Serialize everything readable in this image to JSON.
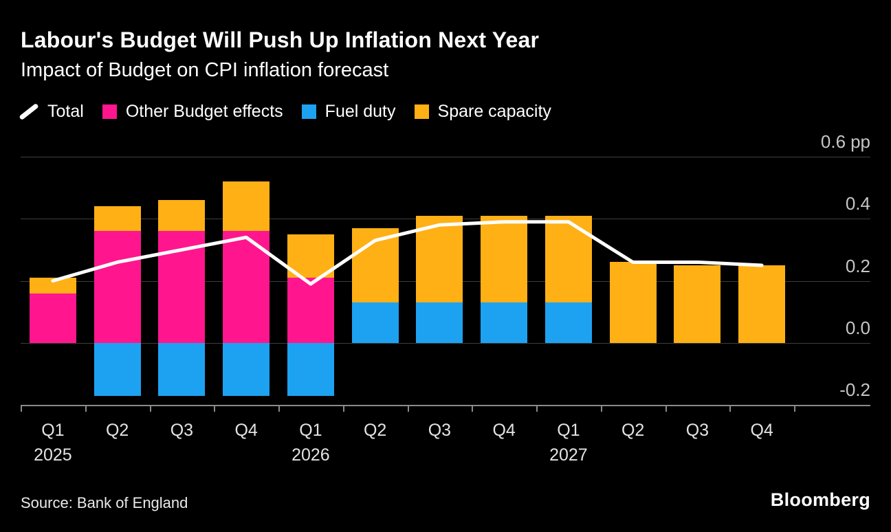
{
  "header": {
    "title": "Labour's Budget Will Push Up Inflation Next Year",
    "subtitle": "Impact of Budget on CPI inflation forecast"
  },
  "legend": {
    "items": [
      {
        "label": "Total",
        "swatch": "line",
        "color": "#ffffff"
      },
      {
        "label": "Other Budget effects",
        "swatch": "square",
        "color": "#ff168f"
      },
      {
        "label": "Fuel duty",
        "swatch": "square",
        "color": "#1da2f1"
      },
      {
        "label": "Spare capacity",
        "swatch": "square",
        "color": "#ffb015"
      }
    ]
  },
  "chart_data": {
    "type": "bar",
    "subtype": "stacked-bars-with-line-overlay",
    "title": "Labour's Budget Will Push Up Inflation Next Year",
    "subtitle": "Impact of Budget on CPI inflation forecast",
    "unit": "pp",
    "categories": [
      "Q1",
      "Q2",
      "Q3",
      "Q4",
      "Q1",
      "Q2",
      "Q3",
      "Q4",
      "Q1",
      "Q2",
      "Q3",
      "Q4"
    ],
    "year_markers": [
      {
        "index": 0,
        "label": "2025"
      },
      {
        "index": 4,
        "label": "2026"
      },
      {
        "index": 8,
        "label": "2027"
      }
    ],
    "series": [
      {
        "name": "Other Budget effects",
        "color": "#ff168f",
        "values": [
          0.16,
          0.36,
          0.36,
          0.36,
          0.21,
          0,
          0,
          0,
          0,
          0,
          0,
          0
        ]
      },
      {
        "name": "Fuel duty",
        "color": "#1da2f1",
        "values": [
          0,
          -0.17,
          -0.17,
          -0.17,
          -0.17,
          0.13,
          0.13,
          0.13,
          0.13,
          0,
          0,
          0
        ]
      },
      {
        "name": "Spare capacity",
        "color": "#ffb015",
        "values": [
          0.05,
          0.08,
          0.1,
          0.16,
          0.14,
          0.24,
          0.28,
          0.28,
          0.28,
          0.26,
          0.25,
          0.25
        ]
      }
    ],
    "line_series": {
      "name": "Total",
      "color": "#ffffff",
      "values": [
        0.2,
        0.26,
        0.3,
        0.34,
        0.19,
        0.33,
        0.38,
        0.39,
        0.39,
        0.26,
        0.26,
        0.25
      ]
    },
    "yticks": [
      {
        "value": 0.6,
        "label": "0.6",
        "unit": "pp"
      },
      {
        "value": 0.4,
        "label": "0.4"
      },
      {
        "value": 0.2,
        "label": "0.2"
      },
      {
        "value": 0.0,
        "label": "0.0"
      },
      {
        "value": -0.2,
        "label": "-0.2"
      }
    ],
    "ylim": [
      -0.25,
      0.62
    ],
    "grid": true,
    "legend_position": "top"
  },
  "footer": {
    "source": "Source: Bank of England",
    "brand": "Bloomberg"
  },
  "colors": {
    "background": "#000000",
    "grid": "#3e3e3e",
    "axis": "#8b8b8b",
    "tick_label": "#c6c6c6",
    "category_label": "#e3e3e3"
  }
}
